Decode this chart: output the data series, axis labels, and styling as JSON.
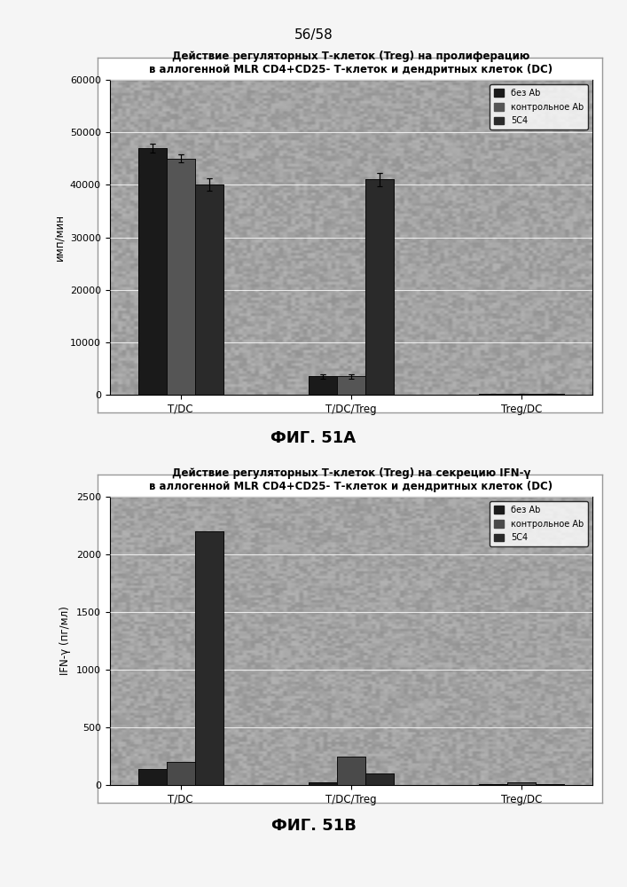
{
  "fig51a": {
    "title": "Действие регуляторных Т-клеток (Treg) на пролиферацию\nв аллогенной MLR CD4+CD25- Т-клеток и дендритных клеток (DC)",
    "ylabel": "имп/мин",
    "ylim": [
      0,
      60000
    ],
    "yticks": [
      0,
      10000,
      20000,
      30000,
      40000,
      50000,
      60000
    ],
    "groups": [
      "T/DC",
      "T/DC/Treg",
      "Treg/DC"
    ],
    "series": [
      {
        "label": "без Ab",
        "color": "#1a1a1a",
        "values": [
          47000,
          3500,
          150
        ]
      },
      {
        "label": "контрольное Ab",
        "color": "#555555",
        "values": [
          45000,
          3500,
          150
        ]
      },
      {
        "label": "5С4",
        "color": "#2a2a2a",
        "values": [
          40000,
          41000,
          150
        ]
      }
    ],
    "errors": [
      [
        800,
        400,
        80
      ],
      [
        800,
        400,
        80
      ],
      [
        1200,
        1200,
        80
      ]
    ],
    "bg_color": "#aaaaaa",
    "noise_alpha": 0.18
  },
  "fig51b": {
    "title": "Действие регуляторных Т-клеток (Treg) на секрецию IFN-γ\nв аллогенной MLR CD4+CD25- Т-клеток и дендритных клеток (DC)",
    "ylabel": "IFN-γ (пг/мл)",
    "ylim": [
      0,
      2500
    ],
    "yticks": [
      0,
      500,
      1000,
      1500,
      2000,
      2500
    ],
    "groups": [
      "T/DC",
      "T/DC/Treg",
      "Treg/DC"
    ],
    "series": [
      {
        "label": "без Ab",
        "color": "#1a1a1a",
        "values": [
          140,
          20,
          10
        ]
      },
      {
        "label": "контрольное Ab",
        "color": "#4a4a4a",
        "values": [
          200,
          250,
          20
        ]
      },
      {
        "label": "5С4",
        "color": "#2a2a2a",
        "values": [
          2200,
          100,
          10
        ]
      }
    ],
    "bg_color": "#aaaaaa",
    "noise_alpha": 0.18
  },
  "page_header": "56/58",
  "fig51a_label": "ФИГ. 51А",
  "fig51b_label": "ФИГ. 51В",
  "outer_box_color": "#dddddd",
  "box_edge_color": "#888888"
}
